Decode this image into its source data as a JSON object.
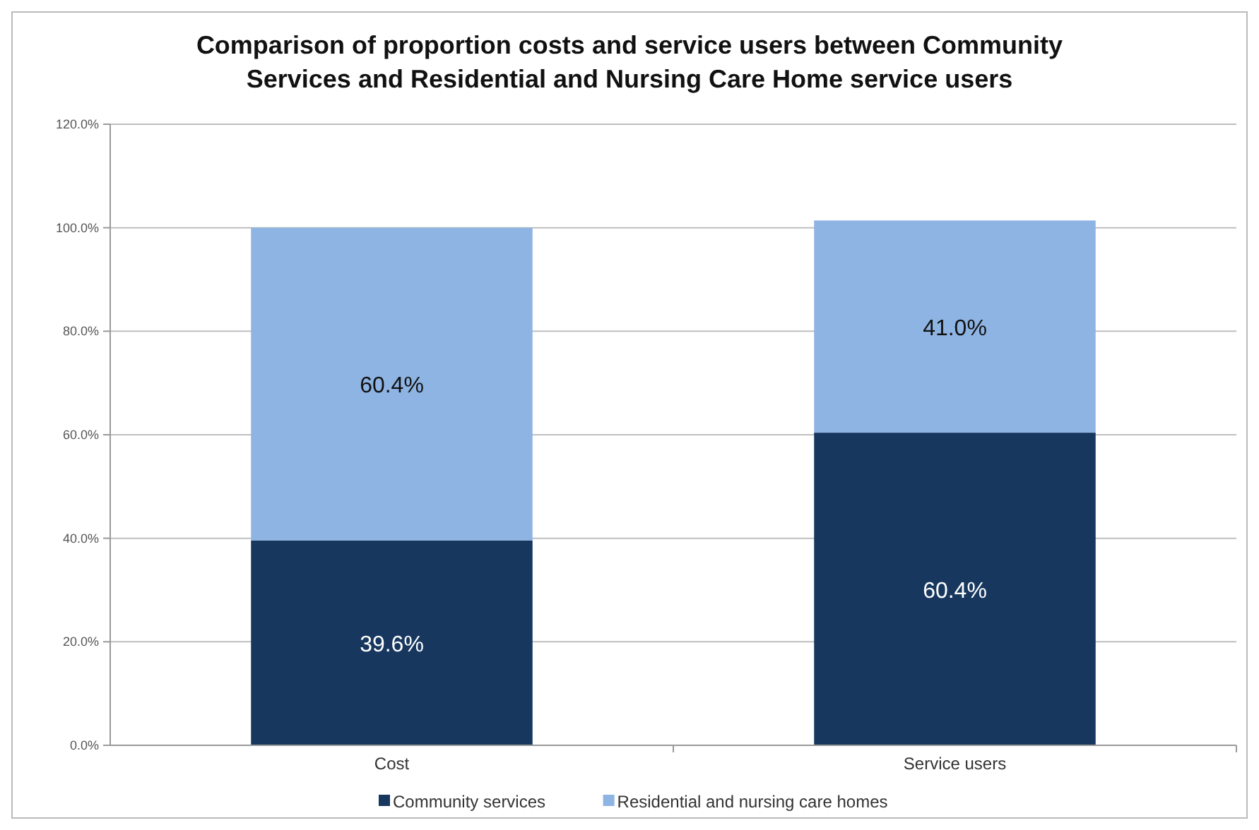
{
  "chart_data": {
    "type": "bar",
    "title": "Comparison of proportion costs and service users between Community Services and Residential and Nursing Care Home service users",
    "categories": [
      "Cost",
      "Service users"
    ],
    "stacked": true,
    "series": [
      {
        "name": "Community services",
        "color": "#17375e",
        "values": [
          39.6,
          60.4
        ],
        "value_labels": [
          "39.6%",
          "60.4%"
        ]
      },
      {
        "name": "Residential and nursing care homes",
        "color": "#8eb4e3",
        "values": [
          60.4,
          41.0
        ],
        "value_labels": [
          "60.4%",
          "41.0%"
        ]
      }
    ],
    "ylim": [
      0,
      120
    ],
    "yticks": [
      {
        "value": 0,
        "label": "0.0%"
      },
      {
        "value": 20,
        "label": "20.0%"
      },
      {
        "value": 40,
        "label": "40.0%"
      },
      {
        "value": 60,
        "label": "60.0%"
      },
      {
        "value": 80,
        "label": "80.0%"
      },
      {
        "value": 100,
        "label": "100.0%"
      },
      {
        "value": 120,
        "label": "120.0%"
      }
    ],
    "grid": "y",
    "legend": "bottom"
  }
}
